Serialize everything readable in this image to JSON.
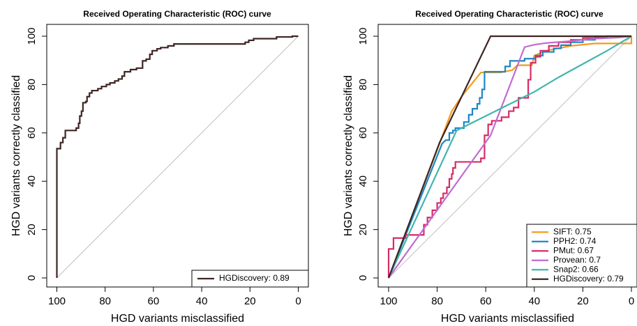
{
  "chart_data": [
    {
      "type": "line",
      "title": "Received Operating Characteristic (ROC) curve",
      "xlabel": "HGD variants misclassified",
      "ylabel": "HGD variants correctly classified",
      "xlim": [
        100,
        0
      ],
      "ylim": [
        0,
        100
      ],
      "x_ticks": [
        "100",
        "80",
        "60",
        "40",
        "20",
        "0"
      ],
      "y_ticks": [
        "0",
        "20",
        "40",
        "60",
        "80",
        "100"
      ],
      "diagonal": true,
      "legend_position": "bottom-right",
      "series": [
        {
          "name": "HGDiscovery: 0.89",
          "color": "#3d2522",
          "step": true,
          "points": [
            [
              100,
              0
            ],
            [
              100,
              53.5
            ],
            [
              98.5,
              53.5
            ],
            [
              98.5,
              56
            ],
            [
              97.5,
              56
            ],
            [
              97.5,
              58
            ],
            [
              96.5,
              58
            ],
            [
              96.5,
              61
            ],
            [
              92,
              61
            ],
            [
              92,
              62
            ],
            [
              91,
              62
            ],
            [
              91,
              64
            ],
            [
              90.5,
              64
            ],
            [
              90.5,
              67
            ],
            [
              89.8,
              67
            ],
            [
              89.8,
              69
            ],
            [
              89.2,
              69
            ],
            [
              89.2,
              72.5
            ],
            [
              88,
              72.5
            ],
            [
              88,
              73
            ],
            [
              87.5,
              73
            ],
            [
              87.5,
              75
            ],
            [
              86.5,
              75
            ],
            [
              86.5,
              76.5
            ],
            [
              85.5,
              76.5
            ],
            [
              85.5,
              77.5
            ],
            [
              83,
              77.5
            ],
            [
              83,
              78.3
            ],
            [
              81.5,
              78.3
            ],
            [
              81.5,
              79.2
            ],
            [
              79.5,
              79.2
            ],
            [
              79.5,
              80
            ],
            [
              78,
              80
            ],
            [
              78,
              80.7
            ],
            [
              76,
              80.7
            ],
            [
              76,
              81.5
            ],
            [
              74.5,
              81.5
            ],
            [
              74.5,
              82.3
            ],
            [
              73,
              82.3
            ],
            [
              73,
              83.5
            ],
            [
              72,
              83.5
            ],
            [
              72,
              85.3
            ],
            [
              69.5,
              85.3
            ],
            [
              69.5,
              86.2
            ],
            [
              67,
              86.2
            ],
            [
              67,
              86.8
            ],
            [
              64.5,
              86.8
            ],
            [
              64.5,
              89.8
            ],
            [
              63,
              89.8
            ],
            [
              63,
              90.5
            ],
            [
              61.5,
              90.5
            ],
            [
              61.5,
              92.5
            ],
            [
              60.5,
              92.5
            ],
            [
              60.5,
              94
            ],
            [
              58.5,
              94
            ],
            [
              58.5,
              94.8
            ],
            [
              57,
              94.8
            ],
            [
              57,
              95.3
            ],
            [
              54,
              95.3
            ],
            [
              54,
              96
            ],
            [
              51.5,
              96
            ],
            [
              51.5,
              96.8
            ],
            [
              22,
              96.8
            ],
            [
              22,
              97.5
            ],
            [
              20.5,
              97.5
            ],
            [
              20.5,
              98.3
            ],
            [
              18.5,
              98.3
            ],
            [
              18.5,
              99
            ],
            [
              9,
              99
            ],
            [
              9,
              99.7
            ],
            [
              2.5,
              99.7
            ],
            [
              2.5,
              100
            ],
            [
              0,
              100
            ]
          ]
        }
      ]
    },
    {
      "type": "line",
      "title": "Received Operating Characteristic (ROC) curve",
      "xlabel": "HGD variants misclassified",
      "ylabel": "HGD variants correctly classified",
      "xlim": [
        100,
        0
      ],
      "ylim": [
        0,
        100
      ],
      "x_ticks": [
        "100",
        "80",
        "60",
        "40",
        "20",
        "0"
      ],
      "y_ticks": [
        "0",
        "20",
        "40",
        "60",
        "80",
        "100"
      ],
      "diagonal": true,
      "legend_position": "bottom-right",
      "series": [
        {
          "name": "SIFT: 0.75",
          "color": "#f59a1e",
          "step": false,
          "points": [
            [
              100,
              0
            ],
            [
              74,
              69
            ],
            [
              70,
              75
            ],
            [
              62,
              85
            ],
            [
              54,
              85
            ],
            [
              49,
              86
            ],
            [
              47,
              88
            ],
            [
              41,
              88
            ],
            [
              40,
              92
            ],
            [
              35,
              94
            ],
            [
              30,
              95
            ],
            [
              25,
              96
            ],
            [
              15,
              97
            ],
            [
              5,
              97
            ],
            [
              3,
              97
            ],
            [
              0,
              97
            ],
            [
              0,
              100
            ]
          ]
        },
        {
          "name": "PPH2: 0.74",
          "color": "#1d86c5",
          "step": true,
          "points": [
            [
              100,
              0
            ],
            [
              78,
              55.5
            ],
            [
              76.5,
              57
            ],
            [
              75,
              57
            ],
            [
              75,
              60
            ],
            [
              73.5,
              60
            ],
            [
              73.5,
              61
            ],
            [
              72.5,
              61
            ],
            [
              72.5,
              62
            ],
            [
              69,
              62
            ],
            [
              69,
              64.5
            ],
            [
              67,
              64.5
            ],
            [
              67,
              67.5
            ],
            [
              65.5,
              67.5
            ],
            [
              65.5,
              70
            ],
            [
              63.5,
              70
            ],
            [
              63.5,
              72
            ],
            [
              62.5,
              72
            ],
            [
              62.5,
              74.5
            ],
            [
              61.5,
              74.5
            ],
            [
              61.5,
              78
            ],
            [
              60.5,
              78
            ],
            [
              60.5,
              85.3
            ],
            [
              52,
              85.3
            ],
            [
              52,
              87.5
            ],
            [
              50,
              87.5
            ],
            [
              50,
              89.8
            ],
            [
              44,
              89.8
            ],
            [
              44,
              90.7
            ],
            [
              39.5,
              90.7
            ],
            [
              39.5,
              92
            ],
            [
              36.5,
              92
            ],
            [
              36.5,
              93.5
            ],
            [
              32,
              93.5
            ],
            [
              32,
              95
            ],
            [
              29,
              95
            ],
            [
              29,
              96.3
            ],
            [
              25,
              96.3
            ],
            [
              25,
              97.5
            ],
            [
              20,
              97.5
            ],
            [
              20,
              98.5
            ],
            [
              15,
              98.5
            ],
            [
              15,
              99.5
            ],
            [
              10,
              99.5
            ],
            [
              10,
              100
            ],
            [
              0,
              100
            ]
          ]
        },
        {
          "name": "PMut: 0.67",
          "color": "#d62b67",
          "step": true,
          "points": [
            [
              100,
              0
            ],
            [
              100,
              12
            ],
            [
              98,
              12
            ],
            [
              98,
              16.5
            ],
            [
              93,
              16.5
            ],
            [
              93,
              17.8
            ],
            [
              85.5,
              17.8
            ],
            [
              85.5,
              22
            ],
            [
              84,
              22
            ],
            [
              84,
              25
            ],
            [
              82,
              25
            ],
            [
              82,
              28
            ],
            [
              80,
              28
            ],
            [
              80,
              31
            ],
            [
              78.5,
              31
            ],
            [
              78.5,
              33
            ],
            [
              77.5,
              33
            ],
            [
              77.5,
              35
            ],
            [
              76,
              35
            ],
            [
              76,
              37.5
            ],
            [
              75,
              37.5
            ],
            [
              75,
              41
            ],
            [
              74,
              41
            ],
            [
              74,
              43
            ],
            [
              73.5,
              43
            ],
            [
              73.5,
              45.5
            ],
            [
              72.5,
              45.5
            ],
            [
              72.5,
              48
            ],
            [
              62,
              48
            ],
            [
              62,
              49.5
            ],
            [
              60.5,
              49.5
            ],
            [
              60.5,
              59
            ],
            [
              59,
              59
            ],
            [
              59,
              63.5
            ],
            [
              57.5,
              63.5
            ],
            [
              57.5,
              65
            ],
            [
              53.5,
              65
            ],
            [
              53.5,
              66.5
            ],
            [
              50.5,
              66.5
            ],
            [
              50.5,
              69
            ],
            [
              48.5,
              69
            ],
            [
              48.5,
              70.5
            ],
            [
              46.5,
              70.5
            ],
            [
              46.5,
              74.5
            ],
            [
              42.5,
              74.5
            ],
            [
              42.5,
              82
            ],
            [
              41.5,
              82
            ],
            [
              41.5,
              89
            ],
            [
              39.5,
              89
            ],
            [
              39.5,
              91.5
            ],
            [
              37.5,
              91.5
            ],
            [
              37.5,
              94
            ],
            [
              34,
              94
            ],
            [
              34,
              96
            ],
            [
              30,
              96
            ],
            [
              30,
              97.5
            ],
            [
              25,
              97.5
            ],
            [
              25,
              98.5
            ],
            [
              20,
              98.5
            ],
            [
              20,
              99.3
            ],
            [
              10,
              99.3
            ],
            [
              10,
              100
            ],
            [
              0,
              100
            ]
          ]
        },
        {
          "name": "Provean: 0.7",
          "color": "#c06ad0",
          "step": false,
          "points": [
            [
              100,
              0
            ],
            [
              58,
              59
            ],
            [
              44,
              95.5
            ],
            [
              40,
              96.5
            ],
            [
              35,
              97.2
            ],
            [
              25,
              98
            ],
            [
              15,
              99
            ],
            [
              5,
              99.5
            ],
            [
              0,
              100
            ]
          ]
        },
        {
          "name": "Snap2: 0.66",
          "color": "#42b5ae",
          "step": false,
          "points": [
            [
              100,
              0
            ],
            [
              72,
              61
            ],
            [
              62,
              66
            ],
            [
              50,
              72
            ],
            [
              40,
              77
            ],
            [
              30,
              83
            ],
            [
              20,
              88.5
            ],
            [
              10,
              94
            ],
            [
              0,
              100
            ]
          ]
        },
        {
          "name": "HGDiscovery: 0.79",
          "color": "#3d2522",
          "step": false,
          "points": [
            [
              100,
              0
            ],
            [
              79,
              56
            ],
            [
              58,
              100
            ],
            [
              0,
              100
            ]
          ]
        }
      ]
    }
  ]
}
